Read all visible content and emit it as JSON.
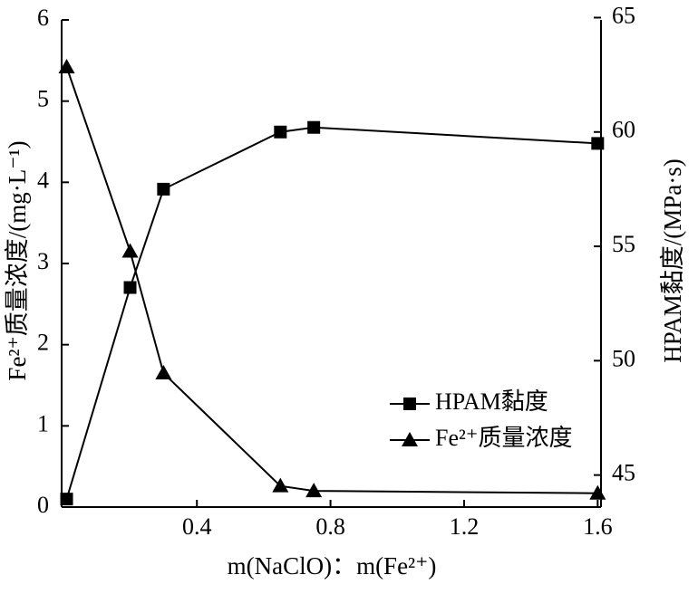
{
  "chart_data": {
    "type": "line",
    "x_label": "m(NaClO)：m(Fe²⁺)",
    "y_label": "Fe²⁺质量浓度/(mg·L⁻¹)",
    "y2_label": "HPAM黏度/(MPa·s)",
    "x": [
      0.01,
      0.2,
      0.3,
      0.65,
      0.75,
      1.6
    ],
    "xlim": [
      -0.005,
      1.61
    ],
    "xticks": [
      0.4,
      0.8,
      1.2,
      1.6
    ],
    "ylim": [
      0,
      6
    ],
    "yticks": [
      0,
      1,
      2,
      3,
      4,
      5,
      6
    ],
    "y2lim": [
      43.6,
      64.9
    ],
    "y2ticks": [
      45,
      50,
      55,
      60,
      65
    ],
    "legend": "lower right",
    "series": [
      {
        "name": "HPAM黏度",
        "color": "#000000",
        "marker": "square",
        "axis": "y2",
        "values": [
          43.95,
          53.2,
          57.5,
          60.0,
          60.2,
          59.5
        ]
      },
      {
        "name": "Fe²⁺质量浓度",
        "color": "#000000",
        "marker": "triangle",
        "values": [
          5.42,
          3.15,
          1.65,
          0.26,
          0.2,
          0.17
        ]
      }
    ]
  }
}
